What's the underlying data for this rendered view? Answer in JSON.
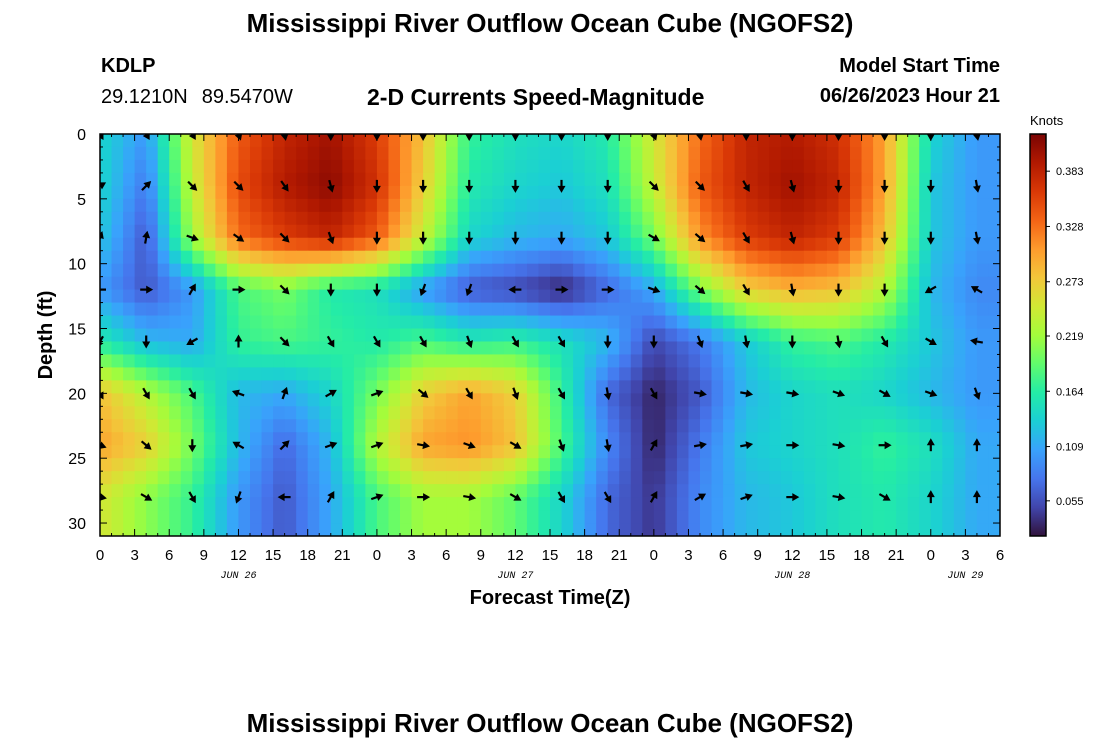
{
  "page": {
    "title_top": "Mississippi River Outflow Ocean Cube (NGOFS2)",
    "title_bottom": "Mississippi River Outflow Ocean Cube (NGOFS2)",
    "station_id": "KDLP",
    "lat": "29.1210N",
    "lon": "89.5470W",
    "subtitle": "2-D Currents Speed-Magnitude",
    "model_start_label": "Model Start Time",
    "model_start_value": "06/26/2023 Hour 21"
  },
  "chart_data": {
    "type": "heatmap",
    "title": "2-D Currents Speed-Magnitude",
    "xlabel": "Forecast Time(Z)",
    "ylabel": "Depth (ft)",
    "colorbar_label": "Knots",
    "xlim": [
      0,
      78
    ],
    "ylim": [
      31,
      0
    ],
    "x_tick_labels": [
      "0",
      "3",
      "6",
      "9",
      "12",
      "15",
      "18",
      "21",
      "0",
      "3",
      "6",
      "9",
      "12",
      "15",
      "18",
      "21",
      "0",
      "3",
      "6",
      "9",
      "12",
      "15",
      "18",
      "21",
      "0",
      "3",
      "6"
    ],
    "date_labels": [
      {
        "label": "JUN 26",
        "hour": 12
      },
      {
        "label": "JUN 27",
        "hour": 36
      },
      {
        "label": "JUN 28",
        "hour": 60
      },
      {
        "label": "JUN 29",
        "hour": 75
      }
    ],
    "y_ticks": [
      0,
      5,
      10,
      15,
      20,
      25,
      30
    ],
    "colorbar_ticks": [
      "0.383",
      "0.328",
      "0.273",
      "0.219",
      "0.164",
      "0.109",
      "0.055"
    ],
    "colorbar_range": [
      0.02,
      0.42
    ],
    "colorscale": [
      "#30123b",
      "#4145ab",
      "#4675ed",
      "#39a2fc",
      "#1bcfd4",
      "#24eca6",
      "#61fc6c",
      "#a4fc3b",
      "#d1e834",
      "#f3c63a",
      "#fe9b2d",
      "#f36315",
      "#d93806",
      "#b11901",
      "#7a0403"
    ],
    "grid": false,
    "hours": [
      0,
      4,
      8,
      12,
      16,
      20,
      24,
      28,
      32,
      36,
      40,
      44,
      48,
      52,
      56,
      60,
      64,
      68,
      72,
      76
    ],
    "depths": [
      0,
      4,
      8,
      12,
      16,
      20,
      24,
      28
    ],
    "speed": [
      [
        0.14,
        0.1,
        0.25,
        0.34,
        0.38,
        0.4,
        0.36,
        0.28,
        0.17,
        0.15,
        0.14,
        0.16,
        0.25,
        0.33,
        0.38,
        0.39,
        0.37,
        0.3,
        0.14,
        0.1
      ],
      [
        0.14,
        0.08,
        0.24,
        0.35,
        0.39,
        0.41,
        0.37,
        0.27,
        0.16,
        0.14,
        0.13,
        0.15,
        0.24,
        0.34,
        0.38,
        0.4,
        0.38,
        0.3,
        0.13,
        0.1
      ],
      [
        0.13,
        0.06,
        0.22,
        0.33,
        0.36,
        0.38,
        0.34,
        0.24,
        0.14,
        0.12,
        0.11,
        0.13,
        0.2,
        0.31,
        0.36,
        0.38,
        0.36,
        0.28,
        0.13,
        0.1
      ],
      [
        0.1,
        0.06,
        0.1,
        0.18,
        0.2,
        0.16,
        0.15,
        0.1,
        0.06,
        0.05,
        0.03,
        0.07,
        0.11,
        0.2,
        0.27,
        0.29,
        0.28,
        0.23,
        0.12,
        0.09
      ],
      [
        0.16,
        0.12,
        0.11,
        0.17,
        0.18,
        0.17,
        0.16,
        0.18,
        0.16,
        0.17,
        0.15,
        0.12,
        0.05,
        0.08,
        0.13,
        0.17,
        0.18,
        0.16,
        0.13,
        0.1
      ],
      [
        0.28,
        0.23,
        0.18,
        0.12,
        0.11,
        0.14,
        0.2,
        0.27,
        0.3,
        0.27,
        0.17,
        0.07,
        0.03,
        0.06,
        0.12,
        0.14,
        0.15,
        0.14,
        0.12,
        0.1
      ],
      [
        0.3,
        0.27,
        0.2,
        0.12,
        0.07,
        0.12,
        0.23,
        0.3,
        0.31,
        0.28,
        0.18,
        0.09,
        0.03,
        0.08,
        0.13,
        0.14,
        0.15,
        0.17,
        0.15,
        0.11
      ],
      [
        0.25,
        0.21,
        0.17,
        0.1,
        0.06,
        0.11,
        0.18,
        0.22,
        0.22,
        0.19,
        0.14,
        0.07,
        0.04,
        0.09,
        0.12,
        0.13,
        0.15,
        0.16,
        0.14,
        0.11
      ]
    ],
    "direction_deg": [
      [
        150,
        150,
        150,
        160,
        170,
        180,
        180,
        180,
        180,
        180,
        180,
        180,
        160,
        170,
        180,
        180,
        180,
        180,
        180,
        170
      ],
      [
        60,
        45,
        135,
        135,
        145,
        165,
        180,
        180,
        180,
        180,
        180,
        180,
        135,
        135,
        150,
        165,
        180,
        180,
        180,
        170
      ],
      [
        20,
        10,
        110,
        125,
        135,
        160,
        180,
        180,
        180,
        180,
        180,
        180,
        120,
        130,
        150,
        165,
        180,
        180,
        180,
        170
      ],
      [
        270,
        90,
        30,
        90,
        135,
        180,
        180,
        200,
        200,
        270,
        90,
        90,
        110,
        130,
        150,
        170,
        180,
        180,
        240,
        300
      ],
      [
        210,
        180,
        240,
        0,
        135,
        150,
        150,
        150,
        160,
        150,
        150,
        180,
        180,
        160,
        170,
        180,
        170,
        150,
        120,
        280
      ],
      [
        150,
        150,
        150,
        290,
        20,
        60,
        70,
        130,
        150,
        160,
        150,
        170,
        150,
        100,
        100,
        100,
        110,
        120,
        110,
        160
      ],
      [
        110,
        130,
        180,
        300,
        45,
        70,
        70,
        100,
        110,
        120,
        160,
        170,
        30,
        80,
        80,
        90,
        100,
        90,
        0,
        0
      ],
      [
        100,
        120,
        150,
        200,
        270,
        30,
        70,
        90,
        100,
        120,
        150,
        150,
        30,
        60,
        70,
        90,
        100,
        120,
        0,
        0
      ]
    ]
  }
}
